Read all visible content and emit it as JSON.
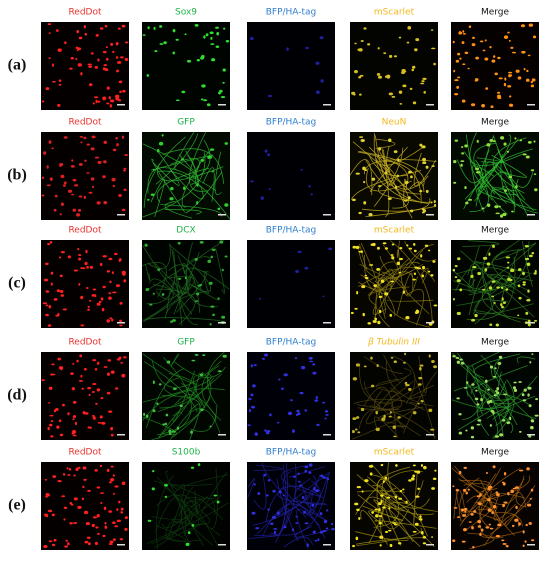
{
  "rows": [
    {
      "label": "(a)",
      "headers": [
        "RedDot",
        "Sox9",
        "BFP/HA-tag",
        "mScarlet",
        "Merge"
      ]
    },
    {
      "label": "(b)",
      "headers": [
        "RedDot",
        "GFP",
        "BFP/HA-tag",
        "NeuN",
        "Merge"
      ]
    },
    {
      "label": "(c)",
      "headers": [
        "RedDot",
        "DCX",
        "BFP/HA-tag",
        "mScarlet",
        "Merge"
      ]
    },
    {
      "label": "(d)",
      "headers": [
        "RedDot",
        "GFP",
        "BFP/HA-tag",
        "β Tubulin III",
        "Merge"
      ]
    },
    {
      "label": "(e)",
      "headers": [
        "RedDot",
        "S100b",
        "BFP/HA-tag",
        "mScarlet",
        "Merge"
      ]
    }
  ]
}
